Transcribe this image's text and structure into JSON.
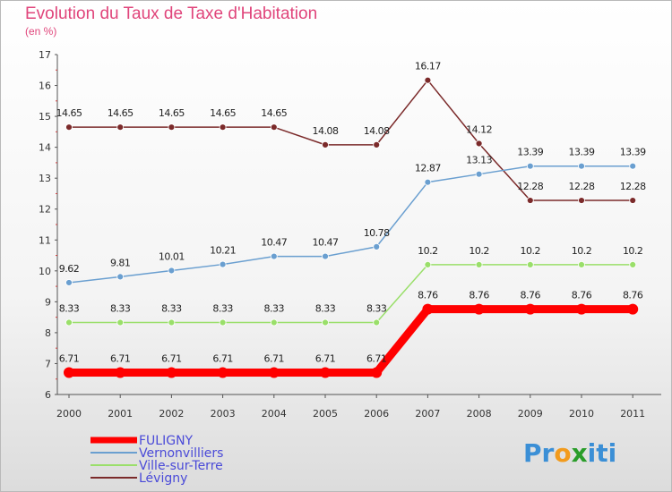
{
  "title": "Evolution du Taux de Taxe d'Habitation",
  "subtitle": "(en %)",
  "logo": {
    "text": "Proxiti",
    "letters": [
      "P",
      "r",
      "o",
      "x",
      "i",
      "t",
      "i"
    ],
    "colors": [
      "#3b8fd6",
      "#3b8fd6",
      "#f29b1d",
      "#2a9d2a",
      "#3b8fd6",
      "#3b8fd6",
      "#3b8fd6"
    ]
  },
  "chart_data": {
    "type": "line",
    "x": [
      "2000",
      "2001",
      "2002",
      "2003",
      "2004",
      "2005",
      "2006",
      "2007",
      "2008",
      "2009",
      "2010",
      "2011"
    ],
    "ylim": [
      6,
      17
    ],
    "yticks": [
      6,
      7,
      8,
      9,
      10,
      11,
      12,
      13,
      14,
      15,
      16,
      17
    ],
    "grid": false,
    "legend_position": "bottom-left",
    "series": [
      {
        "name": "FULIGNY",
        "color": "#ff0000",
        "values": [
          6.71,
          6.71,
          6.71,
          6.71,
          6.71,
          6.71,
          6.71,
          8.76,
          8.76,
          8.76,
          8.76,
          8.76
        ],
        "labels": [
          "6.71",
          "6.71",
          "6.71",
          "6.71",
          "6.71",
          "6.71",
          "6.71",
          "8.76",
          "8.76",
          "8.76",
          "8.76",
          "8.76"
        ]
      },
      {
        "name": "Vernonvilliers",
        "color": "#6a9fd0",
        "values": [
          9.62,
          9.81,
          10.01,
          10.21,
          10.47,
          10.47,
          10.78,
          12.87,
          13.13,
          13.39,
          13.39,
          13.39
        ],
        "labels": [
          "9.62",
          "9.81",
          "10.01",
          "10.21",
          "10.47",
          "10.47",
          "10.78",
          "12.87",
          "13.13",
          "13.39",
          "13.39",
          "13.39"
        ]
      },
      {
        "name": "Ville-sur-Terre",
        "color": "#9adf6a",
        "values": [
          8.33,
          8.33,
          8.33,
          8.33,
          8.33,
          8.33,
          8.33,
          10.2,
          10.2,
          10.2,
          10.2,
          10.2
        ],
        "labels": [
          "8.33",
          "8.33",
          "8.33",
          "8.33",
          "8.33",
          "8.33",
          "8.33",
          "10.2",
          "10.2",
          "10.2",
          "10.2",
          "10.2"
        ]
      },
      {
        "name": "Lévigny",
        "color": "#7b2a2a",
        "values": [
          14.65,
          14.65,
          14.65,
          14.65,
          14.65,
          14.08,
          14.08,
          16.17,
          14.12,
          12.28,
          12.28,
          12.28
        ],
        "labels": [
          "14.65",
          "14.65",
          "14.65",
          "14.65",
          "14.65",
          "14.08",
          "14.08",
          "16.17",
          "14.12",
          "12.28",
          "12.28",
          "12.28"
        ]
      }
    ]
  }
}
